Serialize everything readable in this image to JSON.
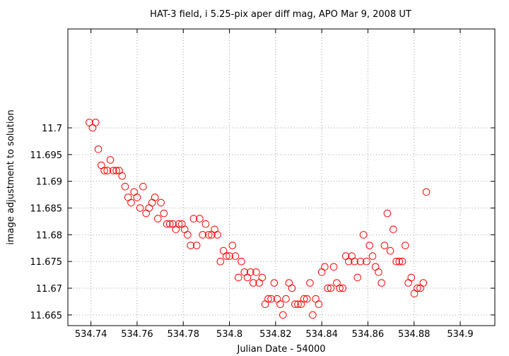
{
  "chart_data": {
    "type": "scatter",
    "title": "HAT-3 field, i 5.25-pix aper diff mag, APO Mar 9, 2008 UT",
    "xlabel": "Julian Date - 54000",
    "ylabel": "image adjustment to solution",
    "xlim": [
      534.73,
      534.915
    ],
    "ylim": [
      11.663,
      11.7185
    ],
    "xticks": [
      "534.74",
      "534.76",
      "534.78",
      "534.8",
      "534.82",
      "534.84",
      "534.86",
      "534.88",
      "534.9"
    ],
    "yticks": [
      "11.665",
      "11.67",
      "11.675",
      "11.68",
      "11.685",
      "11.69",
      "11.695",
      "11.7"
    ],
    "grid": true,
    "marker": "open-circle",
    "color": "#ff0000",
    "points": [
      [
        534.7393,
        11.701
      ],
      [
        534.7407,
        11.7
      ],
      [
        534.742,
        11.701
      ],
      [
        534.7432,
        11.696
      ],
      [
        534.7445,
        11.693
      ],
      [
        534.7458,
        11.692
      ],
      [
        534.7471,
        11.692
      ],
      [
        534.7484,
        11.694
      ],
      [
        534.7497,
        11.692
      ],
      [
        534.751,
        11.692
      ],
      [
        534.7522,
        11.692
      ],
      [
        534.7535,
        11.691
      ],
      [
        534.7548,
        11.689
      ],
      [
        534.7561,
        11.687
      ],
      [
        534.7574,
        11.686
      ],
      [
        534.7587,
        11.688
      ],
      [
        534.76,
        11.687
      ],
      [
        534.7613,
        11.685
      ],
      [
        534.7626,
        11.689
      ],
      [
        534.7639,
        11.684
      ],
      [
        534.7652,
        11.685
      ],
      [
        534.7665,
        11.686
      ],
      [
        534.7677,
        11.687
      ],
      [
        534.769,
        11.683
      ],
      [
        534.7703,
        11.686
      ],
      [
        534.7716,
        11.684
      ],
      [
        534.7729,
        11.682
      ],
      [
        534.7742,
        11.682
      ],
      [
        534.7755,
        11.682
      ],
      [
        534.7768,
        11.681
      ],
      [
        534.7781,
        11.682
      ],
      [
        534.7794,
        11.682
      ],
      [
        534.7806,
        11.681
      ],
      [
        534.7819,
        11.68
      ],
      [
        534.7832,
        11.678
      ],
      [
        534.7845,
        11.683
      ],
      [
        534.7858,
        11.678
      ],
      [
        534.7871,
        11.683
      ],
      [
        534.7884,
        11.68
      ],
      [
        534.7897,
        11.682
      ],
      [
        534.791,
        11.68
      ],
      [
        534.7923,
        11.68
      ],
      [
        534.7936,
        11.681
      ],
      [
        534.7948,
        11.68
      ],
      [
        534.7961,
        11.675
      ],
      [
        534.7974,
        11.677
      ],
      [
        534.7987,
        11.676
      ],
      [
        534.8,
        11.676
      ],
      [
        534.8013,
        11.678
      ],
      [
        534.8026,
        11.676
      ],
      [
        534.8039,
        11.672
      ],
      [
        534.8052,
        11.675
      ],
      [
        534.8065,
        11.673
      ],
      [
        534.8078,
        11.672
      ],
      [
        534.8091,
        11.673
      ],
      [
        534.8103,
        11.671
      ],
      [
        534.8116,
        11.673
      ],
      [
        534.8129,
        11.671
      ],
      [
        534.8142,
        11.672
      ],
      [
        534.8155,
        11.667
      ],
      [
        534.8168,
        11.668
      ],
      [
        534.8181,
        11.668
      ],
      [
        534.8194,
        11.671
      ],
      [
        534.8207,
        11.668
      ],
      [
        534.822,
        11.667
      ],
      [
        534.8232,
        11.665
      ],
      [
        534.8245,
        11.668
      ],
      [
        534.8258,
        11.671
      ],
      [
        534.8271,
        11.67
      ],
      [
        534.8284,
        11.667
      ],
      [
        534.8297,
        11.667
      ],
      [
        534.831,
        11.667
      ],
      [
        534.8323,
        11.668
      ],
      [
        534.8336,
        11.668
      ],
      [
        534.8349,
        11.671
      ],
      [
        534.8361,
        11.665
      ],
      [
        534.8374,
        11.668
      ],
      [
        534.8387,
        11.667
      ],
      [
        534.84,
        11.673
      ],
      [
        534.8413,
        11.674
      ],
      [
        534.8426,
        11.67
      ],
      [
        534.8439,
        11.67
      ],
      [
        534.8452,
        11.674
      ],
      [
        534.8465,
        11.671
      ],
      [
        534.8478,
        11.67
      ],
      [
        534.8491,
        11.67
      ],
      [
        534.8504,
        11.676
      ],
      [
        534.8517,
        11.675
      ],
      [
        534.853,
        11.676
      ],
      [
        534.8542,
        11.675
      ],
      [
        534.8555,
        11.672
      ],
      [
        534.8568,
        11.675
      ],
      [
        534.8581,
        11.68
      ],
      [
        534.8594,
        11.675
      ],
      [
        534.8607,
        11.678
      ],
      [
        534.862,
        11.676
      ],
      [
        534.8633,
        11.674
      ],
      [
        534.8646,
        11.673
      ],
      [
        534.8659,
        11.671
      ],
      [
        534.8672,
        11.678
      ],
      [
        534.8684,
        11.684
      ],
      [
        534.8697,
        11.677
      ],
      [
        534.871,
        11.681
      ],
      [
        534.8723,
        11.675
      ],
      [
        534.8736,
        11.675
      ],
      [
        534.8749,
        11.675
      ],
      [
        534.8762,
        11.678
      ],
      [
        534.8775,
        11.671
      ],
      [
        534.8788,
        11.672
      ],
      [
        534.8801,
        11.669
      ],
      [
        534.8814,
        11.67
      ],
      [
        534.8827,
        11.67
      ],
      [
        534.884,
        11.671
      ],
      [
        534.8853,
        11.688
      ]
    ]
  }
}
